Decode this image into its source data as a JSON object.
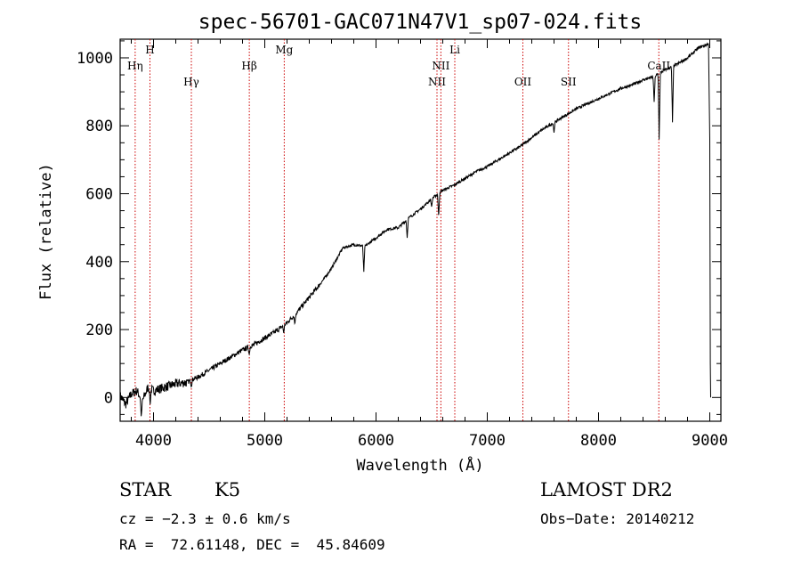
{
  "chart_data": {
    "type": "line",
    "title": "spec-56701-GAC071N47V1_sp07-024.fits",
    "xlabel": "Wavelength (Å)",
    "ylabel": "Flux (relative)",
    "xlim": [
      3700,
      9100
    ],
    "ylim": [
      -70,
      1055
    ],
    "xticks": [
      4000,
      5000,
      6000,
      7000,
      8000,
      9000
    ],
    "xtick_labels": [
      "4000",
      "5000",
      "6000",
      "7000",
      "8000",
      "9000"
    ],
    "yticks": [
      0,
      200,
      400,
      600,
      800,
      1000
    ],
    "ytick_labels": [
      "0",
      "200",
      "400",
      "600",
      "800",
      "1000"
    ],
    "grid": false,
    "series": [
      {
        "x": [
          3700,
          3750,
          3800,
          3850,
          3900,
          3950,
          4000,
          4100,
          4200,
          4300,
          4400,
          4500,
          4600,
          4700,
          4800,
          4900,
          5000,
          5100,
          5200,
          5300,
          5400,
          5500,
          5600,
          5700,
          5800,
          5900,
          6000,
          6100,
          6200,
          6300,
          6400,
          6500,
          6600,
          6700,
          6800,
          6900,
          7000,
          7100,
          7200,
          7300,
          7400,
          7500,
          7600,
          7700,
          7800,
          7900,
          8000,
          8100,
          8200,
          8300,
          8400,
          8500,
          8600,
          8700,
          8800,
          8900,
          8980,
          9000
        ],
        "y": [
          5,
          -20,
          10,
          20,
          -10,
          30,
          20,
          30,
          40,
          45,
          60,
          80,
          100,
          120,
          140,
          155,
          175,
          195,
          220,
          255,
          295,
          335,
          380,
          440,
          450,
          445,
          470,
          495,
          500,
          530,
          555,
          585,
          610,
          625,
          645,
          665,
          680,
          700,
          720,
          740,
          765,
          790,
          810,
          830,
          850,
          865,
          880,
          895,
          910,
          920,
          935,
          945,
          965,
          980,
          1000,
          1030,
          1040,
          1040
        ],
        "dips": [
          {
            "x": 3890,
            "y": -60
          },
          {
            "x": 3970,
            "y": -20
          },
          {
            "x": 4340,
            "y": 30
          },
          {
            "x": 4860,
            "y": 125
          },
          {
            "x": 5170,
            "y": 190
          },
          {
            "x": 5270,
            "y": 215
          },
          {
            "x": 5890,
            "y": 370
          },
          {
            "x": 6280,
            "y": 470
          },
          {
            "x": 6500,
            "y": 560
          },
          {
            "x": 6563,
            "y": 530
          },
          {
            "x": 7600,
            "y": 780
          },
          {
            "x": 8500,
            "y": 870
          },
          {
            "x": 8545,
            "y": 760
          },
          {
            "x": 8665,
            "y": 810
          },
          {
            "x": 9000,
            "y": 760
          },
          {
            "x": 9005,
            "y": 100
          },
          {
            "x": 9008,
            "y": 0
          }
        ]
      }
    ],
    "lines": [
      {
        "label": "Hη",
        "x": 3835,
        "tier": 1
      },
      {
        "label": "H",
        "x": 3968,
        "tier": 0
      },
      {
        "label": "Hγ",
        "x": 4340,
        "tier": 2
      },
      {
        "label": "Hβ",
        "x": 4861,
        "tier": 1
      },
      {
        "label": "Mg",
        "x": 5175,
        "tier": 0
      },
      {
        "label": "NII",
        "x": 6548,
        "tier": 2
      },
      {
        "label": "NII",
        "x": 6583,
        "tier": 1
      },
      {
        "label": "Li",
        "x": 6708,
        "tier": 0
      },
      {
        "label": "OII",
        "x": 7320,
        "tier": 2
      },
      {
        "label": "SII",
        "x": 7730,
        "tier": 2
      },
      {
        "label": "CaII",
        "x": 8542,
        "tier": 1
      }
    ]
  },
  "info": {
    "object_class": "STAR",
    "subclass": "K5",
    "survey": "LAMOST DR2",
    "cz": "cz = −2.3 ± 0.6 km/s",
    "obs_date": "Obs−Date: 20140212",
    "radec": "RA =  72.61148, DEC =  45.84609"
  }
}
